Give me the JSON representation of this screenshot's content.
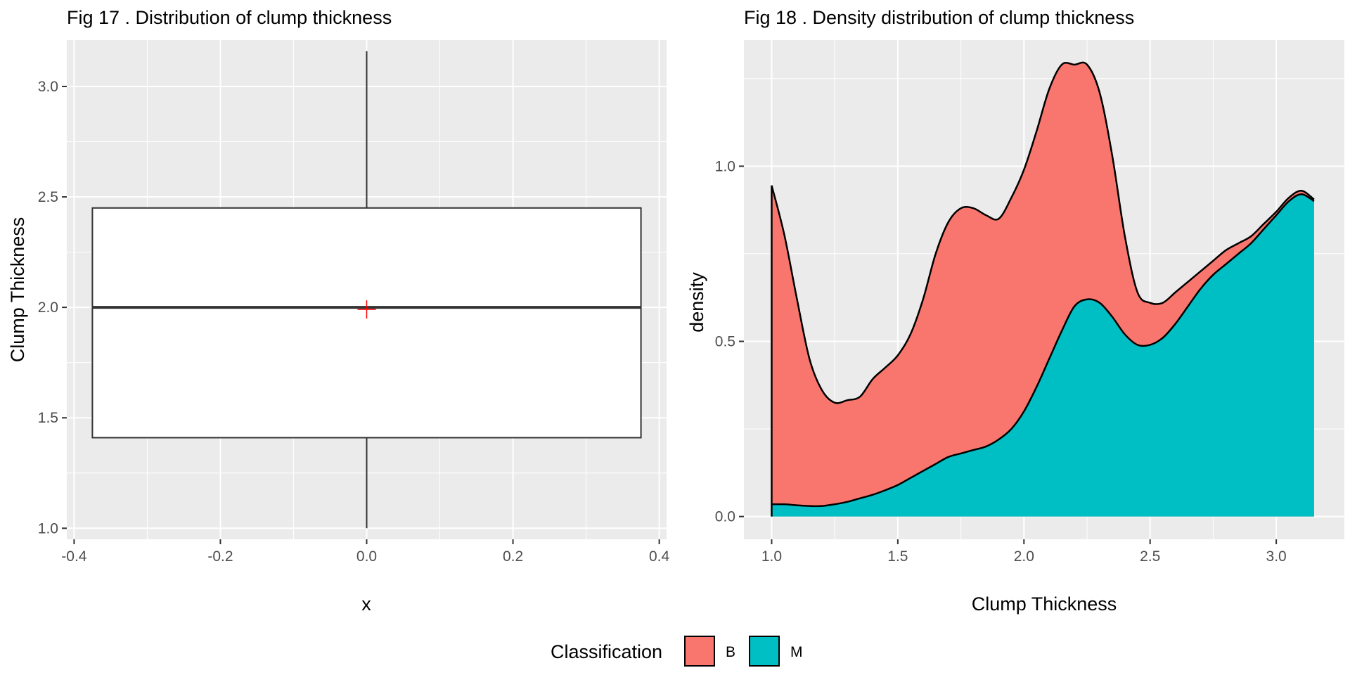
{
  "legend": {
    "title": "Classification",
    "position": "bottom",
    "entries": [
      {
        "label": "B",
        "color": "#F8766D"
      },
      {
        "label": "M",
        "color": "#00BFC4"
      }
    ]
  },
  "chart_data": [
    {
      "type": "box",
      "title": "Fig 17 . Distribution of clump thickness",
      "xlabel": "x",
      "ylabel": "Clump Thickness",
      "xlim": [
        -0.41,
        0.41
      ],
      "ylim": [
        0.95,
        3.21
      ],
      "xticks": [
        -0.4,
        -0.2,
        0.0,
        0.2,
        0.4
      ],
      "xtick_labels": [
        "-0.4",
        "-0.2",
        "0.0",
        "0.2",
        "0.4"
      ],
      "yticks": [
        1.0,
        1.5,
        2.0,
        2.5,
        3.0
      ],
      "ytick_labels": [
        "1.0",
        "1.5",
        "2.0",
        "2.5",
        "3.0"
      ],
      "grid": true,
      "box": {
        "x_center": 0.0,
        "x_half_width": 0.375,
        "whisker_low": 1.0,
        "q1": 1.41,
        "median": 2.0,
        "q3": 2.45,
        "whisker_high": 3.16,
        "mean": 2.0,
        "mean_marker_color": "#FF0000"
      }
    },
    {
      "type": "area",
      "stacked": true,
      "title": "Fig 18 . Density distribution of clump thickness",
      "xlabel": "Clump Thickness",
      "ylabel": "density",
      "xlim": [
        0.89,
        3.27
      ],
      "ylim": [
        -0.065,
        1.36
      ],
      "xticks": [
        1.0,
        1.5,
        2.0,
        2.5,
        3.0
      ],
      "xtick_labels": [
        "1.0",
        "1.5",
        "2.0",
        "2.5",
        "3.0"
      ],
      "yticks": [
        0.0,
        0.5,
        1.0
      ],
      "ytick_labels": [
        "0.0",
        "0.5",
        "1.0"
      ],
      "grid": true,
      "x": [
        1.0,
        1.05,
        1.1,
        1.15,
        1.2,
        1.25,
        1.3,
        1.35,
        1.4,
        1.45,
        1.5,
        1.55,
        1.6,
        1.65,
        1.7,
        1.75,
        1.8,
        1.85,
        1.9,
        1.95,
        2.0,
        2.05,
        2.1,
        2.15,
        2.2,
        2.25,
        2.3,
        2.35,
        2.4,
        2.45,
        2.5,
        2.55,
        2.6,
        2.65,
        2.7,
        2.75,
        2.8,
        2.85,
        2.9,
        2.95,
        3.0,
        3.05,
        3.1,
        3.15
      ],
      "series": [
        {
          "name": "M",
          "color": "#00BFC4",
          "values": [
            0.035,
            0.035,
            0.032,
            0.03,
            0.03,
            0.035,
            0.042,
            0.052,
            0.062,
            0.075,
            0.09,
            0.11,
            0.13,
            0.15,
            0.17,
            0.18,
            0.19,
            0.2,
            0.22,
            0.25,
            0.3,
            0.37,
            0.45,
            0.53,
            0.6,
            0.62,
            0.61,
            0.57,
            0.52,
            0.49,
            0.49,
            0.51,
            0.55,
            0.6,
            0.65,
            0.69,
            0.72,
            0.75,
            0.78,
            0.82,
            0.86,
            0.9,
            0.92,
            0.9
          ]
        },
        {
          "name": "B",
          "color": "#F8766D",
          "values": [
            0.91,
            0.77,
            0.59,
            0.42,
            0.33,
            0.29,
            0.29,
            0.29,
            0.33,
            0.35,
            0.37,
            0.41,
            0.49,
            0.6,
            0.67,
            0.7,
            0.69,
            0.66,
            0.63,
            0.66,
            0.69,
            0.73,
            0.77,
            0.76,
            0.69,
            0.67,
            0.6,
            0.46,
            0.28,
            0.15,
            0.12,
            0.1,
            0.09,
            0.07,
            0.05,
            0.04,
            0.04,
            0.03,
            0.02,
            0.015,
            0.01,
            0.01,
            0.01,
            0.005
          ]
        }
      ]
    }
  ]
}
